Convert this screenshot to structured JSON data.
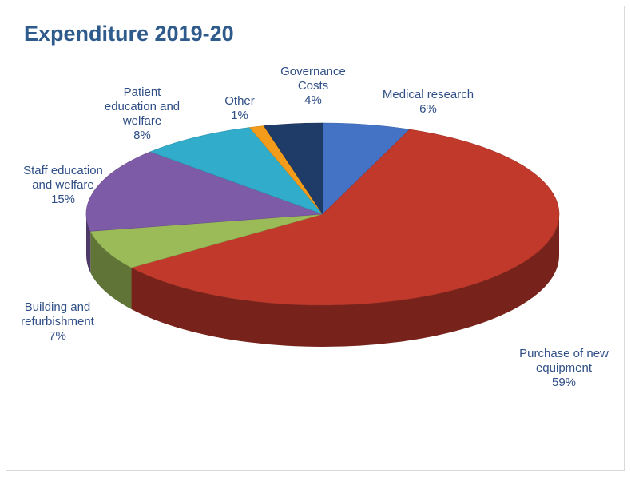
{
  "chart_data": {
    "type": "pie",
    "title": "Expenditure 2019-20",
    "slices": [
      {
        "name_lines": [
          "Medical research"
        ],
        "pct_label": "6%",
        "value": 6,
        "color": "#4472C4"
      },
      {
        "name_lines": [
          "Purchase of new",
          "equipment"
        ],
        "pct_label": "59%",
        "value": 59,
        "color": "#C0392B"
      },
      {
        "name_lines": [
          "Building and",
          "refurbishment"
        ],
        "pct_label": "7%",
        "value": 7,
        "color": "#9BBB59"
      },
      {
        "name_lines": [
          "Staff education",
          "and welfare"
        ],
        "pct_label": "15%",
        "value": 15,
        "color": "#7E5BA6"
      },
      {
        "name_lines": [
          "Patient",
          "education and",
          "welfare"
        ],
        "pct_label": "8%",
        "value": 8,
        "color": "#31ACCB"
      },
      {
        "name_lines": [
          "Other"
        ],
        "pct_label": "1%",
        "value": 1,
        "color": "#F39C1B"
      },
      {
        "name_lines": [
          "Governance",
          "Costs"
        ],
        "pct_label": "4%",
        "value": 4,
        "color": "#1F3C68"
      }
    ],
    "legend": "none",
    "style": "3d"
  }
}
